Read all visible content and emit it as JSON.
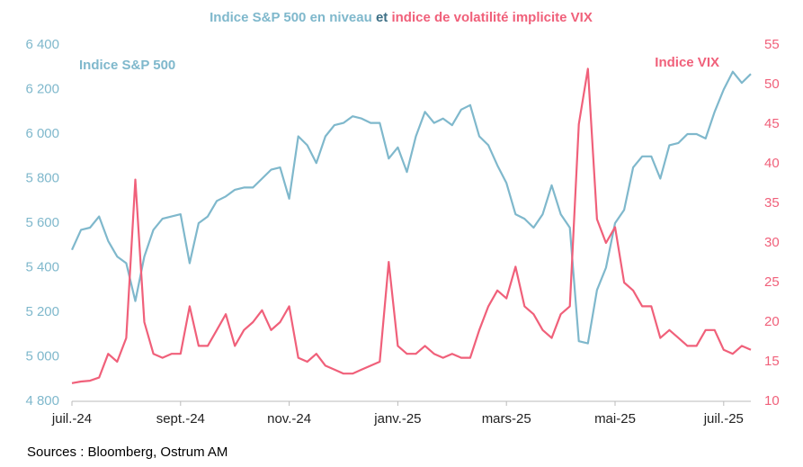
{
  "chart_data": {
    "type": "line",
    "title": [
      {
        "text": "Indice S&P 500 en niveau",
        "color": "#7fb8cc"
      },
      {
        "text": "et",
        "color": "#3d6f85"
      },
      {
        "text": "indice de volatilité implicite VIX",
        "color": "#f0607a"
      }
    ],
    "source": "Sources : Bloomberg, Ostrum AM",
    "categories": [
      "juil.-24",
      null,
      null,
      null,
      null,
      null,
      null,
      null,
      null,
      null,
      null,
      null,
      "sept.-24",
      null,
      null,
      null,
      null,
      null,
      null,
      null,
      null,
      null,
      null,
      null,
      "nov.-24",
      null,
      null,
      null,
      null,
      null,
      null,
      null,
      null,
      null,
      null,
      null,
      "janv.-25",
      null,
      null,
      null,
      null,
      null,
      null,
      null,
      null,
      null,
      null,
      null,
      "mars-25",
      null,
      null,
      null,
      null,
      null,
      null,
      null,
      null,
      null,
      null,
      null,
      "mai-25",
      null,
      null,
      null,
      null,
      null,
      null,
      null,
      null,
      null,
      null,
      null,
      "juil.-25",
      null,
      null,
      null
    ],
    "series": [
      {
        "name": "Indice S&P 500",
        "color": "#7fb8cc",
        "axis": "y",
        "values": [
          5480,
          5570,
          5580,
          5630,
          5520,
          5450,
          5420,
          5250,
          5450,
          5570,
          5620,
          5630,
          5640,
          5420,
          5600,
          5630,
          5700,
          5720,
          5750,
          5760,
          5760,
          5800,
          5840,
          5850,
          5710,
          5990,
          5950,
          5870,
          5990,
          6040,
          6050,
          6080,
          6070,
          6050,
          6050,
          5890,
          5940,
          5830,
          5990,
          6100,
          6050,
          6070,
          6040,
          6110,
          6130,
          5990,
          5950,
          5860,
          5780,
          5640,
          5620,
          5580,
          5640,
          5770,
          5640,
          5580,
          5070,
          5060,
          5300,
          5400,
          5600,
          5660,
          5850,
          5900,
          5900,
          5800,
          5950,
          5960,
          6000,
          6000,
          5980,
          6100,
          6200,
          6280,
          6230,
          6270
        ]
      },
      {
        "name": "Indice VIX",
        "color": "#f0607a",
        "axis": "y2",
        "values": [
          12.3,
          12.5,
          12.6,
          13,
          16,
          15,
          18,
          38,
          20,
          16,
          15.5,
          16,
          16,
          22,
          17,
          17,
          19,
          21,
          17,
          19,
          20,
          21.5,
          19,
          20,
          22,
          15.5,
          15,
          16,
          14.5,
          14,
          13.5,
          13.5,
          14,
          14.5,
          15,
          27.6,
          17,
          16,
          16,
          17,
          16,
          15.5,
          16,
          15.5,
          15.5,
          19,
          22,
          24,
          23,
          27,
          22,
          21,
          19,
          18,
          21,
          22,
          45,
          52,
          33,
          30,
          32,
          25,
          24,
          22,
          22,
          18,
          19,
          18,
          17,
          17,
          19,
          19,
          16.5,
          16,
          17,
          16.5
        ]
      }
    ],
    "ylim": [
      4800,
      6400
    ],
    "yticks": [
      {
        "value": 4800,
        "label": "4 800"
      },
      {
        "value": 5000,
        "label": "5 000"
      },
      {
        "value": 5200,
        "label": "5 200"
      },
      {
        "value": 5400,
        "label": "5 400"
      },
      {
        "value": 5600,
        "label": "5 600"
      },
      {
        "value": 5800,
        "label": "5 800"
      },
      {
        "value": 6000,
        "label": "6 000"
      },
      {
        "value": 6200,
        "label": "6 200"
      },
      {
        "value": 6400,
        "label": "6 400"
      }
    ],
    "y2lim": [
      10,
      55
    ],
    "y2ticks": [
      10,
      15,
      20,
      25,
      30,
      35,
      40,
      45,
      50,
      55
    ],
    "grid": false
  }
}
